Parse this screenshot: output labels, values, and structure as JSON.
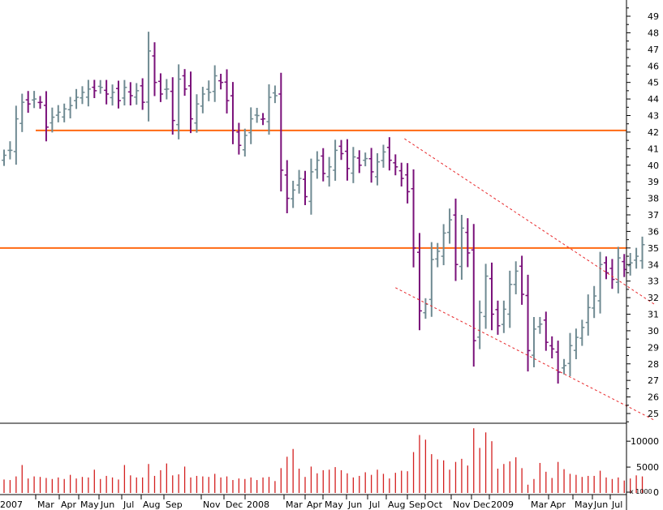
{
  "chart_data": {
    "type": "ohlc",
    "volume_unit_label": "x 1000",
    "price_axis": {
      "min": 24.5,
      "max": 49.5,
      "ticks": [
        25,
        26,
        27,
        28,
        29,
        30,
        31,
        32,
        33,
        34,
        35,
        36,
        37,
        38,
        39,
        40,
        41,
        42,
        43,
        44,
        45,
        46,
        47,
        48,
        49
      ]
    },
    "volume_axis": {
      "min": 0,
      "max": 13000,
      "ticks": [
        0,
        5000,
        10000
      ]
    },
    "time_labels": [
      "2007",
      "Mar",
      "Apr",
      "May",
      "Jun",
      "Jul",
      "Aug",
      "Sep",
      "Nov",
      "Dec",
      "2008",
      "Mar",
      "Apr",
      "May",
      "Jun",
      "Jul",
      "Aug",
      "Sep",
      "Oct",
      "Nov",
      "Dec",
      "2009",
      "Mar",
      "Apr",
      "May",
      "Jun",
      "Jul"
    ],
    "horizontal_lines": [
      {
        "value": 42.1,
        "color": "#ff6a13"
      },
      {
        "value": 35.0,
        "color": "#ff6a13"
      }
    ],
    "trend_channel": {
      "color": "#e8282b",
      "upper": {
        "from": {
          "week": 66.5,
          "price": 41.6
        },
        "to": {
          "week": 108,
          "price": 31.6
        }
      },
      "lower": {
        "from": {
          "week": 65,
          "price": 32.6
        },
        "to": {
          "week": 108,
          "price": 24.6
        }
      }
    },
    "bar_colors": {
      "up": "#6f8a92",
      "down": "#7a117a"
    },
    "volume_color": "#d42020",
    "start_week": 0,
    "closes": [
      40.6,
      40.9,
      42.8,
      43.8,
      43.7,
      44.0,
      43.8,
      42.3,
      42.9,
      43.2,
      43.4,
      43.6,
      44.1,
      44.4,
      44.6,
      44.5,
      44.7,
      44.3,
      44.4,
      43.9,
      44.7,
      44.2,
      44.5,
      43.8,
      46.9,
      45.0,
      44.3,
      44.6,
      42.7,
      45.2,
      44.6,
      42.8,
      43.7,
      44.3,
      44.4,
      45.4,
      45.0,
      43.9,
      42.1,
      41.2,
      41.8,
      42.8,
      43.0,
      42.8,
      44.1,
      44.2,
      39.7,
      38.0,
      38.5,
      39.2,
      38.1,
      39.6,
      40.3,
      39.5,
      39.9,
      40.9,
      40.7,
      39.8,
      40.5,
      40.0,
      40.4,
      39.6,
      40.2,
      40.8,
      40.3,
      39.9,
      39.2,
      38.4,
      35.0,
      31.2,
      31.6,
      34.3,
      34.8,
      35.9,
      36.7,
      34.0,
      36.2,
      34.7,
      29.4,
      31.1,
      33.3,
      31.0,
      30.3,
      31.3,
      32.8,
      33.6,
      32.2,
      28.8,
      30.1,
      30.4,
      29.3,
      28.9,
      27.5,
      27.9,
      29.1,
      29.6,
      30.2,
      31.4,
      32.1,
      34.0,
      33.5,
      33.1,
      34.4,
      33.7,
      34.1,
      34.5,
      35.2
    ],
    "volumes": [
      2600,
      2500,
      3200,
      5400,
      2800,
      3200,
      3100,
      2900,
      2700,
      3000,
      2700,
      3500,
      2800,
      3100,
      3000,
      4500,
      2700,
      3300,
      3000,
      2600,
      5400,
      3400,
      3000,
      3000,
      5600,
      3300,
      4400,
      5700,
      3400,
      3600,
      5100,
      3000,
      3300,
      3200,
      3100,
      3700,
      3000,
      3200,
      2500,
      2800,
      2700,
      3000,
      2500,
      3000,
      3100,
      2300,
      4800,
      7000,
      8500,
      4700,
      3100,
      5100,
      3800,
      4400,
      4500,
      5000,
      4400,
      3800,
      3000,
      3300,
      4000,
      3500,
      4500,
      3700,
      2800,
      3900,
      4300,
      4200,
      7900,
      11200,
      10300,
      7500,
      6500,
      6300,
      4500,
      6000,
      6600,
      5300,
      12500,
      8700,
      11700,
      10000,
      4700,
      5600,
      6100,
      6900,
      4800,
      1600,
      2700,
      5800,
      4100,
      2900,
      6000,
      4600,
      3700,
      3500,
      3100,
      3300,
      3300,
      4300,
      3000,
      2700,
      3000,
      2400,
      2800,
      3400,
      3200
    ]
  }
}
